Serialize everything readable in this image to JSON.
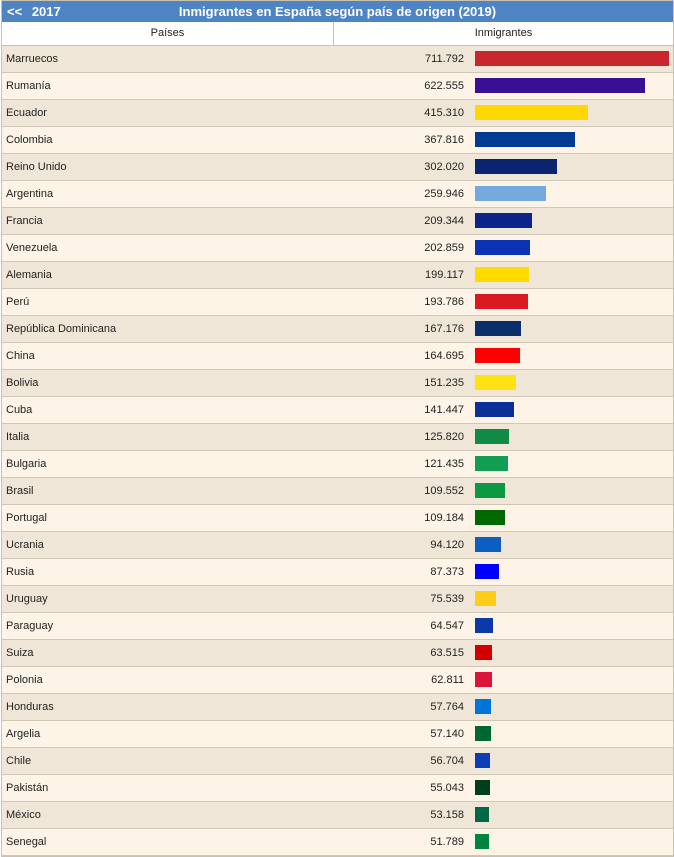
{
  "header": {
    "back_arrows": "<<",
    "back_year": "2017",
    "title": "Inmigrantes en España según país de origen (2019)"
  },
  "columns": {
    "country": "Países",
    "value": "Inmigrantes"
  },
  "chart_data": {
    "type": "bar",
    "title": "Inmigrantes en España según país de origen (2019)",
    "xlabel": "Países",
    "ylabel": "Inmigrantes",
    "max": 711792,
    "rows": [
      {
        "country": "Marruecos",
        "label": "711.792",
        "value": 711792,
        "color": "#c8262d"
      },
      {
        "country": "Rumanía",
        "label": "622.555",
        "value": 622555,
        "color": "#3a0f96"
      },
      {
        "country": "Ecuador",
        "label": "415.310",
        "value": 415310,
        "color": "#ffd800"
      },
      {
        "country": "Colombia",
        "label": "367.816",
        "value": 367816,
        "color": "#003b93"
      },
      {
        "country": "Reino Unido",
        "label": "302.020",
        "value": 302020,
        "color": "#0a2470"
      },
      {
        "country": "Argentina",
        "label": "259.946",
        "value": 259946,
        "color": "#73a9dc"
      },
      {
        "country": "Francia",
        "label": "209.344",
        "value": 209344,
        "color": "#0c2389"
      },
      {
        "country": "Venezuela",
        "label": "202.859",
        "value": 202859,
        "color": "#0b33b4"
      },
      {
        "country": "Alemania",
        "label": "199.117",
        "value": 199117,
        "color": "#ffdb00"
      },
      {
        "country": "Perú",
        "label": "193.786",
        "value": 193786,
        "color": "#d91a23"
      },
      {
        "country": "República Dominicana",
        "label": "167.176",
        "value": 167176,
        "color": "#0b2f6b"
      },
      {
        "country": "China",
        "label": "164.695",
        "value": 164695,
        "color": "#ff0000"
      },
      {
        "country": "Bolivia",
        "label": "151.235",
        "value": 151235,
        "color": "#ffe114"
      },
      {
        "country": "Cuba",
        "label": "141.447",
        "value": 141447,
        "color": "#0b2f96"
      },
      {
        "country": "Italia",
        "label": "125.820",
        "value": 125820,
        "color": "#118a45"
      },
      {
        "country": "Bulgaria",
        "label": "121.435",
        "value": 121435,
        "color": "#129d52"
      },
      {
        "country": "Brasil",
        "label": "109.552",
        "value": 109552,
        "color": "#0d9941"
      },
      {
        "country": "Portugal",
        "label": "109.184",
        "value": 109184,
        "color": "#006a00"
      },
      {
        "country": "Ucrania",
        "label": "94.120",
        "value": 94120,
        "color": "#0c5ec0"
      },
      {
        "country": "Rusia",
        "label": "87.373",
        "value": 87373,
        "color": "#0000ff"
      },
      {
        "country": "Uruguay",
        "label": "75.539",
        "value": 75539,
        "color": "#fecd1a"
      },
      {
        "country": "Paraguay",
        "label": "64.547",
        "value": 64547,
        "color": "#0c39a8"
      },
      {
        "country": "Suiza",
        "label": "63.515",
        "value": 63515,
        "color": "#d20000"
      },
      {
        "country": "Polonia",
        "label": "62.811",
        "value": 62811,
        "color": "#dc143c"
      },
      {
        "country": "Honduras",
        "label": "57.764",
        "value": 57764,
        "color": "#0074d9"
      },
      {
        "country": "Argelia",
        "label": "57.140",
        "value": 57140,
        "color": "#006633"
      },
      {
        "country": "Chile",
        "label": "56.704",
        "value": 56704,
        "color": "#0b3db4"
      },
      {
        "country": "Pakistán",
        "label": "55.043",
        "value": 55043,
        "color": "#013e1a"
      },
      {
        "country": "México",
        "label": "53.158",
        "value": 53158,
        "color": "#006845"
      },
      {
        "country": "Senegal",
        "label": "51.789",
        "value": 51789,
        "color": "#00853f"
      }
    ]
  }
}
